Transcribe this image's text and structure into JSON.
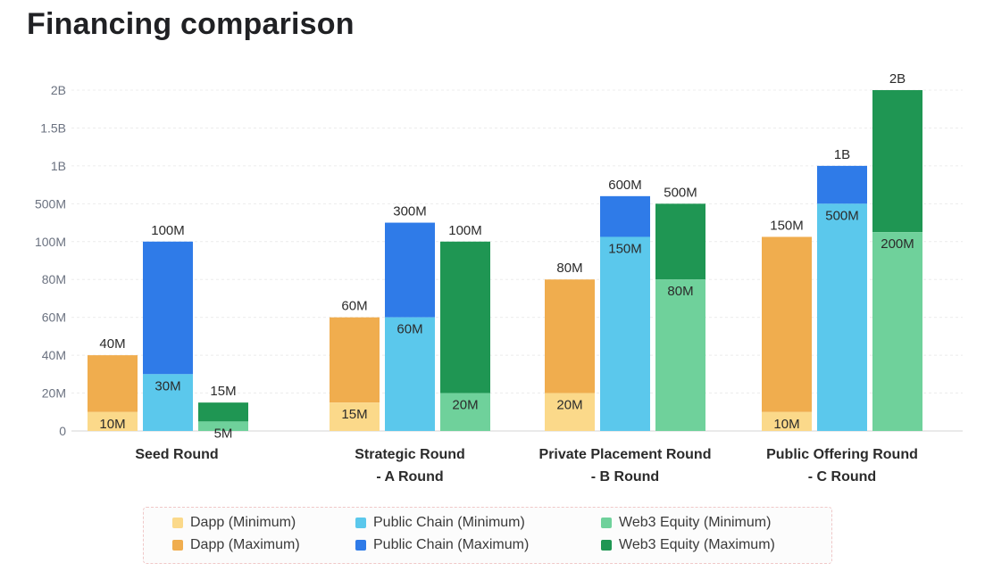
{
  "title": "Financing comparison",
  "chart_data": {
    "type": "bar",
    "title": "Financing comparison",
    "xlabel": "",
    "ylabel": "",
    "ylim": [
      0,
      2000000000
    ],
    "grid": true,
    "legend_position": "bottom",
    "y_axis_note": "non-linear categorical tick spacing",
    "y_ticks": [
      "0",
      "20M",
      "40M",
      "60M",
      "80M",
      "100M",
      "500M",
      "1B",
      "1.5B",
      "2B"
    ],
    "categories": [
      [
        "Seed Round"
      ],
      [
        "Strategic Round",
        "- A Round"
      ],
      [
        "Private Placement Round",
        "- B Round"
      ],
      [
        "Public Offering Round",
        "- C Round"
      ]
    ],
    "series": [
      {
        "name": "Dapp (Minimum)",
        "values": [
          10000000,
          15000000,
          20000000,
          10000000
        ],
        "labels": [
          "10M",
          "15M",
          "20M",
          "10M"
        ],
        "color": "#fbd98a"
      },
      {
        "name": "Dapp (Maximum)",
        "values": [
          40000000,
          60000000,
          80000000,
          150000000
        ],
        "labels": [
          "40M",
          "60M",
          "80M",
          "150M"
        ],
        "color": "#f0ad4e"
      },
      {
        "name": "Public Chain (Minimum)",
        "values": [
          30000000,
          60000000,
          150000000,
          500000000
        ],
        "labels": [
          "30M",
          "60M",
          "150M",
          "500M"
        ],
        "color": "#5bc8ec"
      },
      {
        "name": "Public Chain (Maximum)",
        "values": [
          100000000,
          300000000,
          600000000,
          1000000000
        ],
        "labels": [
          "100M",
          "300M",
          "600M",
          "1B"
        ],
        "color": "#2f7be8"
      },
      {
        "name": "Web3 Equity (Minimum)",
        "values": [
          5000000,
          20000000,
          80000000,
          200000000
        ],
        "labels": [
          "5M",
          "20M",
          "80M",
          "200M"
        ],
        "color": "#6fd19b"
      },
      {
        "name": "Web3 Equity (Maximum)",
        "values": [
          15000000,
          100000000,
          500000000,
          2000000000
        ],
        "labels": [
          "15M",
          "100M",
          "500M",
          "2B"
        ],
        "color": "#1f9653"
      }
    ]
  },
  "legend": [
    {
      "label": "Dapp (Minimum)",
      "color": "#fbd98a"
    },
    {
      "label": "Public Chain (Minimum)",
      "color": "#5bc8ec"
    },
    {
      "label": "Web3 Equity (Minimum)",
      "color": "#6fd19b"
    },
    {
      "label": "Dapp (Maximum)",
      "color": "#f0ad4e"
    },
    {
      "label": "Public Chain (Maximum)",
      "color": "#2f7be8"
    },
    {
      "label": "Web3 Equity (Maximum)",
      "color": "#1f9653"
    }
  ]
}
